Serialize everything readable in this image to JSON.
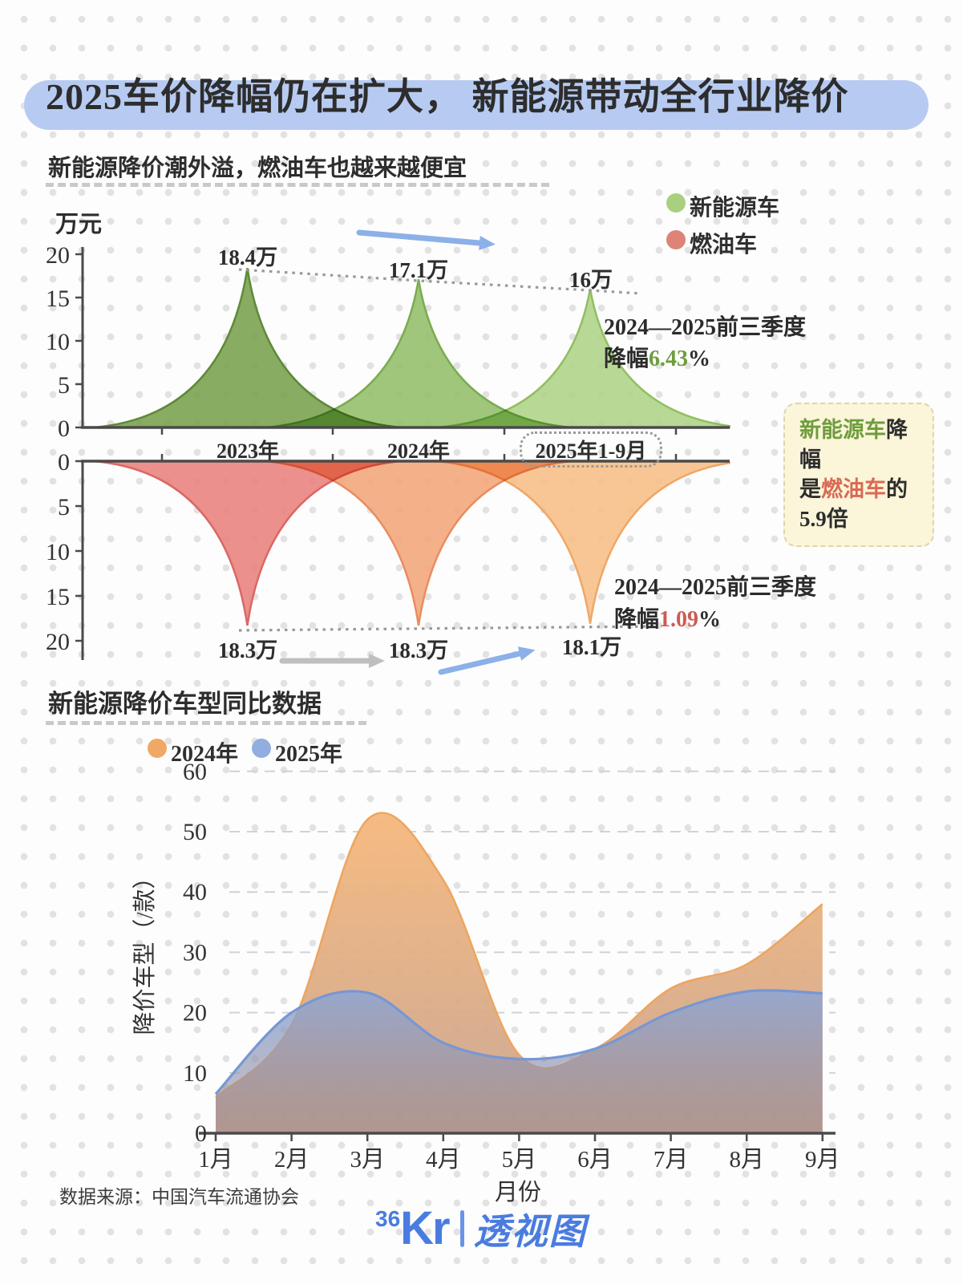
{
  "title": "2025车价降幅仍在扩大， 新能源带动全行业降价",
  "subtitle": "新能源降价潮外溢，燃油车也越来越便宜",
  "section2_heading": "新能源降价车型同比数据",
  "legend_top": {
    "nev": "新能源车",
    "fuel": "燃油车"
  },
  "annotation_top": {
    "line1": "2024—2025前三季度",
    "prefix": "降幅",
    "value": "6.43",
    "suffix": "%"
  },
  "annotation_bottom": {
    "line1": "2024—2025前三季度",
    "prefix": "降幅",
    "value": "1.09",
    "suffix": "%"
  },
  "callout": {
    "l1a": "新能源车",
    "l1b": "降幅",
    "l2a": "是",
    "l2b": "燃油车",
    "l2c": "的",
    "l3": "5.9倍"
  },
  "footer": {
    "source": "数据来源：中国汽车流通协会",
    "logo_36": "36",
    "logo_kr": "Kr",
    "logo_name": "透视图"
  },
  "colors": {
    "title_highlight": "#b7cbf2",
    "green_text": "#6f9d3d",
    "red_text": "#cd5c52",
    "blue_arrow": "#8cb0e8",
    "gray_arrow": "#bfbfbf",
    "legend_nev_dot": "#a9d07f",
    "legend_fuel_dot": "#dd8476",
    "legend_2024_dot": "#f0a865",
    "legend_2025_dot": "#92ade0"
  },
  "chart_data": [
    {
      "type": "area",
      "name": "新能源车均价",
      "unit": "万元",
      "categories": [
        "2023年",
        "2024年",
        "2025年1-9月"
      ],
      "values": [
        18.4,
        17.1,
        16.0
      ],
      "point_labels": [
        "18.4万",
        "17.1万",
        "16万"
      ],
      "ylim": [
        0,
        20
      ],
      "yticks": [
        0,
        5,
        10,
        15,
        20
      ],
      "orientation": "up",
      "colors": [
        "#7aa351",
        "#95c06d",
        "#b0d489"
      ],
      "strokes": [
        "#5f8a39",
        "#7bab50",
        "#90bf61"
      ]
    },
    {
      "type": "area",
      "name": "燃油车均价",
      "unit": "万元",
      "categories": [
        "2023年",
        "2024年",
        "2025年1-9月"
      ],
      "values": [
        18.3,
        18.3,
        18.1
      ],
      "point_labels": [
        "18.3万",
        "18.3万",
        "18.1万"
      ],
      "ylim": [
        0,
        20
      ],
      "yticks": [
        0,
        5,
        10,
        15,
        20
      ],
      "orientation": "down",
      "colors": [
        "#e98480",
        "#f3a77c",
        "#f7c08a"
      ],
      "strokes": [
        "#db6764",
        "#e98d5f",
        "#efa768"
      ]
    },
    {
      "type": "area",
      "name": "新能源降价车型同比数据",
      "categories": [
        "1月",
        "2月",
        "3月",
        "4月",
        "5月",
        "6月",
        "7月",
        "8月",
        "9月"
      ],
      "xlabel": "月份",
      "ylabel": "降价车型（/款）",
      "ylim": [
        0,
        60
      ],
      "yticks": [
        0,
        10,
        20,
        30,
        40,
        50,
        60
      ],
      "grid": true,
      "legend_position": "top-left",
      "series": [
        {
          "name": "2024年",
          "color": "#f0a865",
          "stroke": "#eda55f",
          "values": [
            6,
            18,
            52,
            42,
            13,
            14,
            24,
            28,
            38
          ]
        },
        {
          "name": "2025年",
          "color": "#92ade0",
          "stroke": "#7697d4",
          "values": [
            6.5,
            20,
            23.3,
            15,
            12.3,
            14,
            20,
            23.5,
            23.2
          ]
        }
      ]
    }
  ]
}
